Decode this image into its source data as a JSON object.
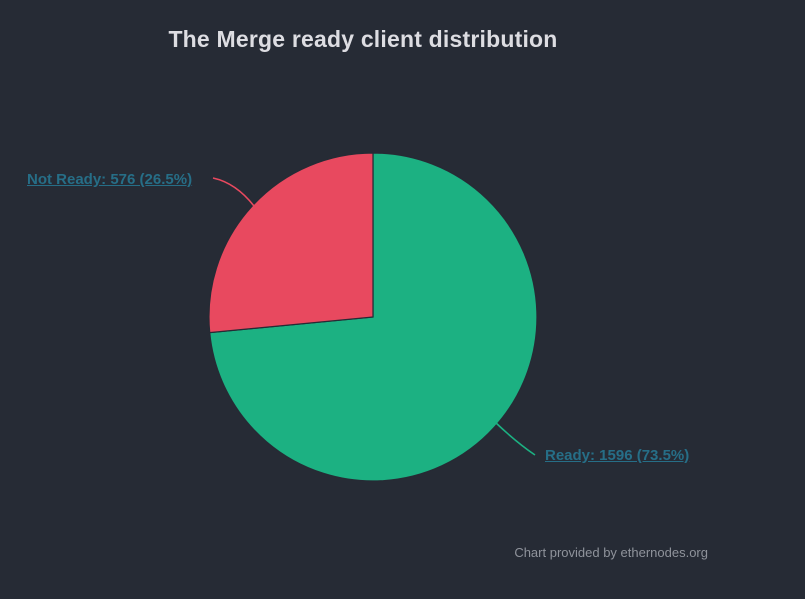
{
  "title": "The Merge ready client distribution",
  "credits": {
    "label": "Chart provided by ethernodes.org"
  },
  "chart_data": {
    "type": "pie",
    "title": "The Merge ready client distribution",
    "start_angle": -90,
    "direction": "clockwise",
    "legend": "none",
    "data_label_color": "#266e87",
    "series": [
      {
        "name": "Ready",
        "value": 1596,
        "percent": 73.5,
        "color": "#1cb182",
        "label": "Ready: 1596 (73.5%)"
      },
      {
        "name": "Not Ready",
        "value": 576,
        "percent": 26.5,
        "color": "#e8495f",
        "label": "Not Ready: 576 (26.5%)"
      }
    ]
  },
  "colors": {
    "background": "#262b35",
    "title": "#dddde2",
    "credits": "#8f939b"
  }
}
